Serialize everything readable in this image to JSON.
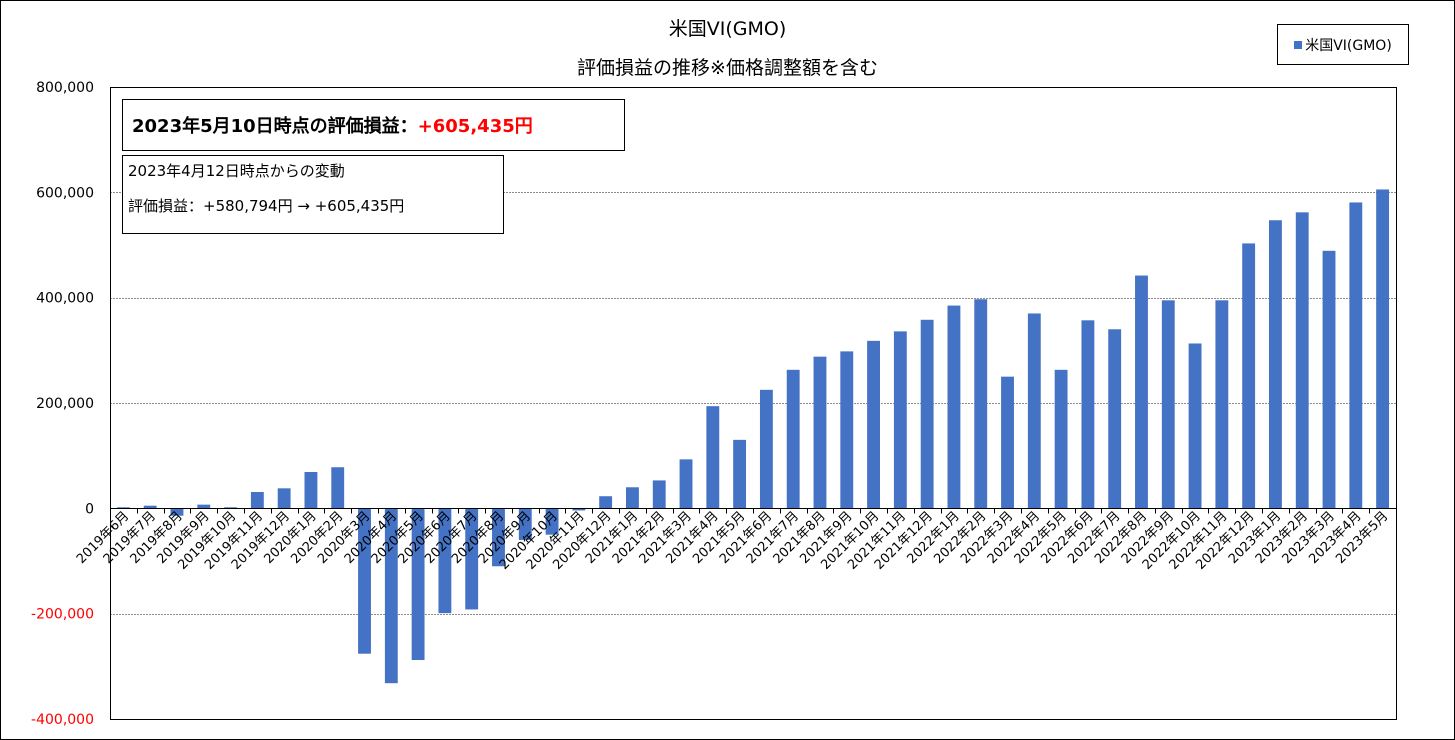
{
  "chart_data": {
    "type": "bar",
    "title": "米国VI(GMO)",
    "subtitle": "評価損益の推移※価格調整額を含む",
    "categories": [
      "2019年6月",
      "2019年7月",
      "2019年8月",
      "2019年9月",
      "2019年10月",
      "2019年11月",
      "2019年12月",
      "2020年1月",
      "2020年2月",
      "2020年3月",
      "2020年4月",
      "2020年5月",
      "2020年6月",
      "2020年7月",
      "2020年8月",
      "2020年9月",
      "2020年10月",
      "2020年11月",
      "2020年12月",
      "2021年1月",
      "2021年2月",
      "2021年3月",
      "2021年4月",
      "2021年5月",
      "2021年6月",
      "2021年7月",
      "2021年8月",
      "2021年9月",
      "2021年10月",
      "2021年11月",
      "2021年12月",
      "2022年1月",
      "2022年2月",
      "2022年3月",
      "2022年4月",
      "2022年5月",
      "2022年6月",
      "2022年7月",
      "2022年8月",
      "2022年9月",
      "2022年10月",
      "2022年11月",
      "2022年12月",
      "2023年1月",
      "2023年2月",
      "2023年3月",
      "2023年4月",
      "2023年5月"
    ],
    "series": [
      {
        "name": "米国VI(GMO)",
        "color": "#4472c4",
        "values": [
          2000,
          5000,
          -14000,
          7000,
          2000,
          31000,
          38000,
          69000,
          78000,
          -276000,
          -332000,
          -288000,
          -199000,
          -192000,
          -110000,
          -60000,
          -50000,
          -4000,
          23000,
          40000,
          53000,
          93000,
          194000,
          130000,
          225000,
          263000,
          288000,
          298000,
          318000,
          336000,
          358000,
          385000,
          397000,
          250000,
          370000,
          263000,
          357000,
          340000,
          442000,
          395000,
          313000,
          395000,
          503000,
          547000,
          562000,
          489000,
          580794,
          605435
        ]
      }
    ],
    "ylim": [
      -400000,
      800000
    ],
    "yticks": [
      -400000,
      -200000,
      0,
      200000,
      400000,
      600000,
      800000
    ],
    "ytick_labels": [
      "-400,000",
      "-200,000",
      "0",
      "200,000",
      "400,000",
      "600,000",
      "800,000"
    ],
    "negative_tick_color": "#ff0000",
    "grid": true,
    "legend_position": "top-right",
    "annotations": {
      "main_label": "2023年5月10日時点の評価損益：",
      "main_value": "+605,435円",
      "main_value_color": "#ff0000",
      "change_title": "2023年4月12日時点からの変動",
      "change_detail": "評価損益：+580,794円 → +605,435円"
    }
  }
}
